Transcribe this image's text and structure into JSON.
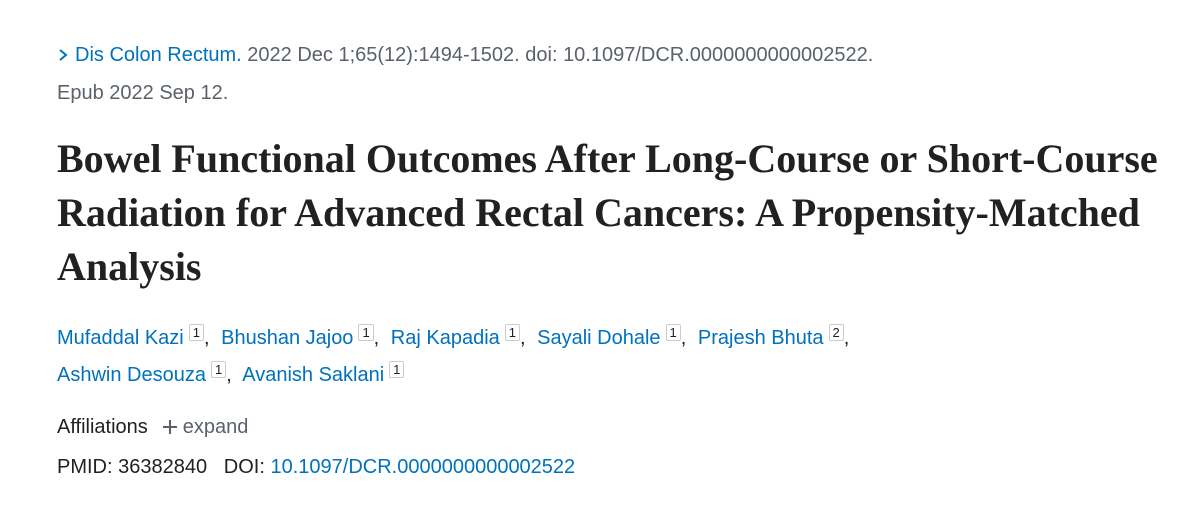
{
  "citation": {
    "journal": "Dis Colon Rectum.",
    "details": "2022 Dec 1;65(12):1494-1502. doi: 10.1097/DCR.0000000000002522.",
    "epub": "Epub 2022 Sep 12."
  },
  "title": "Bowel Functional Outcomes After Long-Course or Short-Course Radiation for Advanced Rectal Cancers: A Propensity-Matched Analysis",
  "authors": [
    {
      "name": "Mufaddal Kazi",
      "affiliation": "1"
    },
    {
      "name": "Bhushan Jajoo",
      "affiliation": "1"
    },
    {
      "name": "Raj Kapadia",
      "affiliation": "1"
    },
    {
      "name": "Sayali Dohale",
      "affiliation": "1"
    },
    {
      "name": "Prajesh Bhuta",
      "affiliation": "2"
    },
    {
      "name": "Ashwin Desouza",
      "affiliation": "1"
    },
    {
      "name": "Avanish Saklani",
      "affiliation": "1"
    }
  ],
  "author_separator": ",",
  "affiliations": {
    "label": "Affiliations",
    "toggle": "expand"
  },
  "identifiers": {
    "pmid_label": "PMID:",
    "pmid": "36382840",
    "doi_label": "DOI:",
    "doi": "10.1097/DCR.0000000000002522"
  }
}
